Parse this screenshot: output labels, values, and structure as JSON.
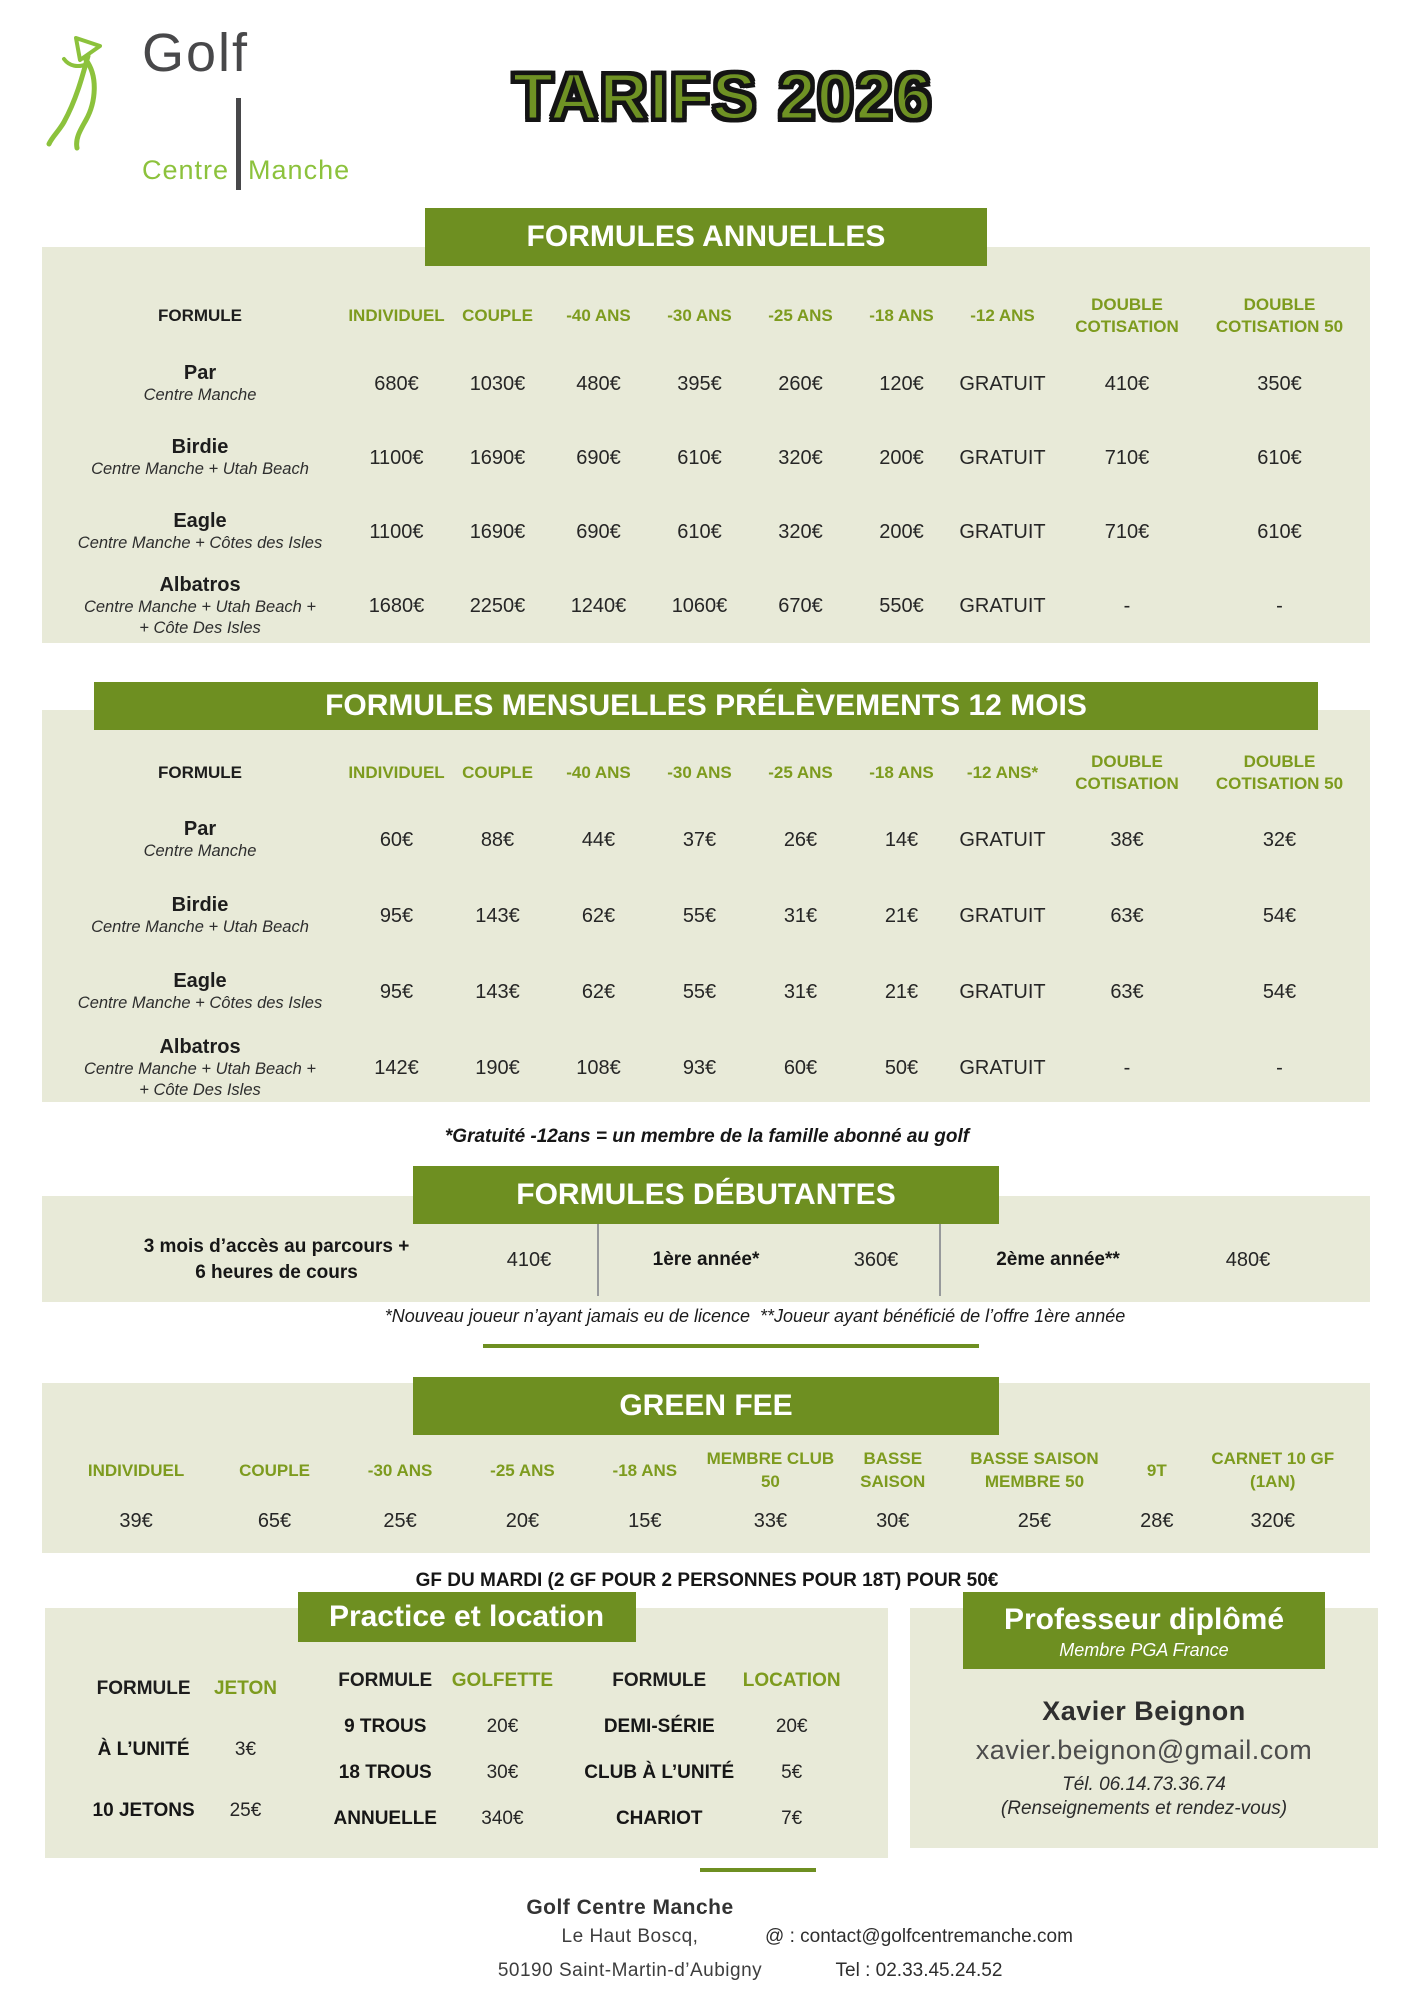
{
  "logo": {
    "golf": "Golf",
    "centre": "Centre",
    "manche": "Manche"
  },
  "title": "TARIFS 2026",
  "colors": {
    "banner_green": "#6e8f21",
    "header_green": "#7d9b1e",
    "table_beige": "#e8ead8",
    "logo_green": "#8cc23c",
    "title_green": "#6f9224"
  },
  "annual": {
    "banner": "FORMULES ANNUELLES",
    "columns": [
      "FORMULE",
      "INDIVIDUEL",
      "COUPLE",
      "-40 ANS",
      "-30 ANS",
      "-25 ANS",
      "-18 ANS",
      "-12 ANS",
      "DOUBLE COTISATION",
      "DOUBLE COTISATION 50"
    ],
    "rows": [
      {
        "name": "Par",
        "subtitle": "Centre Manche",
        "values": [
          "680€",
          "1030€",
          "480€",
          "395€",
          "260€",
          "120€",
          "GRATUIT",
          "410€",
          "350€"
        ]
      },
      {
        "name": "Birdie",
        "subtitle": "Centre Manche + Utah Beach",
        "values": [
          "1100€",
          "1690€",
          "690€",
          "610€",
          "320€",
          "200€",
          "GRATUIT",
          "710€",
          "610€"
        ]
      },
      {
        "name": "Eagle",
        "subtitle": "Centre Manche + Côtes des Isles",
        "values": [
          "1100€",
          "1690€",
          "690€",
          "610€",
          "320€",
          "200€",
          "GRATUIT",
          "710€",
          "610€"
        ]
      },
      {
        "name": "Albatros",
        "subtitle": "Centre Manche + Utah Beach +\n+ Côte Des Isles",
        "values": [
          "1680€",
          "2250€",
          "1240€",
          "1060€",
          "670€",
          "550€",
          "GRATUIT",
          "-",
          "-"
        ]
      }
    ]
  },
  "monthly": {
    "banner": "FORMULES MENSUELLES PRÉLÈVEMENTS 12 MOIS",
    "columns": [
      "FORMULE",
      "INDIVIDUEL",
      "COUPLE",
      "-40 ANS",
      "-30 ANS",
      "-25 ANS",
      "-18 ANS",
      "-12 ANS*",
      "DOUBLE COTISATION",
      "DOUBLE COTISATION 50"
    ],
    "rows": [
      {
        "name": "Par",
        "subtitle": "Centre Manche",
        "values": [
          "60€",
          "88€",
          "44€",
          "37€",
          "26€",
          "14€",
          "GRATUIT",
          "38€",
          "32€"
        ]
      },
      {
        "name": "Birdie",
        "subtitle": "Centre Manche + Utah Beach",
        "values": [
          "95€",
          "143€",
          "62€",
          "55€",
          "31€",
          "21€",
          "GRATUIT",
          "63€",
          "54€"
        ]
      },
      {
        "name": "Eagle",
        "subtitle": "Centre Manche + Côtes des Isles",
        "values": [
          "95€",
          "143€",
          "62€",
          "55€",
          "31€",
          "21€",
          "GRATUIT",
          "63€",
          "54€"
        ]
      },
      {
        "name": "Albatros",
        "subtitle": "Centre Manche + Utah Beach +\n+ Côte Des Isles",
        "values": [
          "142€",
          "190€",
          "108€",
          "93€",
          "60€",
          "50€",
          "GRATUIT",
          "-",
          "-"
        ]
      }
    ]
  },
  "notes": {
    "gratuite": "*Gratuité -12ans = un membre de la famille abonné au golf",
    "joueur": "*Nouveau joueur n’ayant jamais eu de licence  **Joueur ayant bénéficié de l’offre 1ère année",
    "gf_mardi": "GF DU MARDI (2 GF POUR 2 PERSONNES POUR 18T) POUR 50€"
  },
  "debutantes": {
    "banner": "FORMULES DÉBUTANTES",
    "items": [
      {
        "label": "3 mois d’accès au parcours +\n6 heures de cours",
        "value": "410€"
      },
      {
        "label": "1ère année*",
        "value": "360€"
      },
      {
        "label": "2ème année**",
        "value": "480€"
      }
    ]
  },
  "greenfee": {
    "banner": "GREEN FEE",
    "columns": [
      "INDIVIDUEL",
      "COUPLE",
      "-30 ANS",
      "-25 ANS",
      "-18 ANS",
      "MEMBRE CLUB 50",
      "BASSE SAISON",
      "BASSE SAISON MEMBRE 50",
      "9T",
      "CARNET 10 GF (1AN)"
    ],
    "values": [
      "39€",
      "65€",
      "25€",
      "20€",
      "15€",
      "33€",
      "30€",
      "25€",
      "28€",
      "320€"
    ]
  },
  "practice": {
    "banner": "Practice et location",
    "tables": [
      {
        "header_label": "FORMULE",
        "header_value": "JETON",
        "rows": [
          [
            "À L’UNITÉ",
            "3€"
          ],
          [
            "10 JETONS",
            "25€"
          ]
        ]
      },
      {
        "header_label": "FORMULE",
        "header_value": "GOLFETTE",
        "rows": [
          [
            "9 TROUS",
            "20€"
          ],
          [
            "18 TROUS",
            "30€"
          ],
          [
            "ANNUELLE",
            "340€"
          ]
        ]
      },
      {
        "header_label": "FORMULE",
        "header_value": "LOCATION",
        "rows": [
          [
            "DEMI-SÉRIE",
            "20€"
          ],
          [
            "CLUB À L’UNITÉ",
            "5€"
          ],
          [
            "CHARIOT",
            "7€"
          ]
        ]
      }
    ]
  },
  "professor": {
    "banner": "Professeur diplômé",
    "subtitle": "Membre PGA France",
    "name": "Xavier Beignon",
    "email": "xavier.beignon@gmail.com",
    "phone": "Tél. 06.14.73.36.74",
    "note": "(Renseignements et rendez-vous)"
  },
  "footer": {
    "name": "Golf Centre Manche",
    "address1": "Le Haut Boscq,",
    "address2": "50190 Saint-Martin-d’Aubigny",
    "email": "@ : contact@golfcentremanche.com",
    "tel": "Tel : 02.33.45.24.52"
  }
}
